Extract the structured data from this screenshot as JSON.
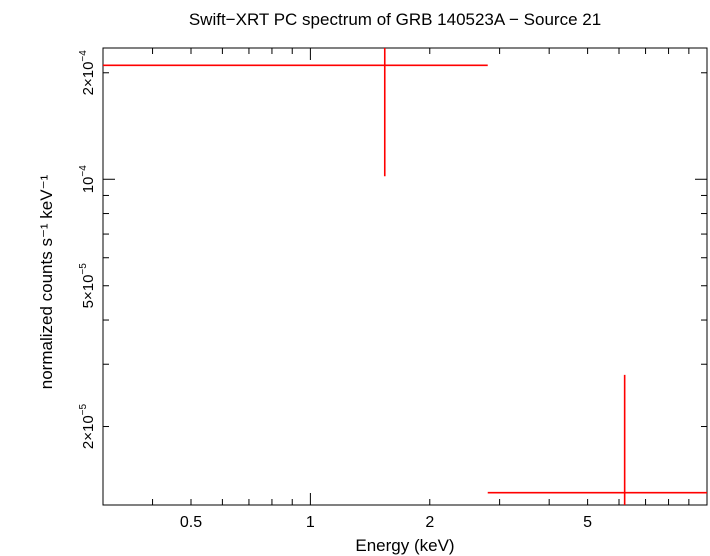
{
  "chart_data": {
    "type": "scatter",
    "title": "Swift−XRT PC spectrum of GRB 140523A − Source 21",
    "xlabel": "Energy (keV)",
    "ylabel": "normalized counts s⁻¹ keV⁻¹",
    "xscale": "log",
    "yscale": "log",
    "xlim": [
      0.3,
      10.0
    ],
    "ylim": [
      1.2e-05,
      0.000235
    ],
    "grid": false,
    "x_tick_labels": [
      {
        "value": 0.5,
        "label": "0.5"
      },
      {
        "value": 1,
        "label": "1"
      },
      {
        "value": 2,
        "label": "2"
      },
      {
        "value": 5,
        "label": "5"
      }
    ],
    "y_tick_labels": [
      {
        "value": 2e-05,
        "mant": "2×10",
        "exp": "−5"
      },
      {
        "value": 5e-05,
        "mant": "5×10",
        "exp": "−5"
      },
      {
        "value": 0.0001,
        "mant": "10",
        "exp": "−4"
      },
      {
        "value": 0.0002,
        "mant": "2×10",
        "exp": "−4"
      }
    ],
    "series": [
      {
        "color": "#ff0000",
        "points": [
          {
            "x": 1.54,
            "xlow": 0.3,
            "xhigh": 2.8,
            "y": 0.00021,
            "ylow": 0.000102,
            "yhigh": 0.000235
          },
          {
            "x": 6.2,
            "xlow": 2.8,
            "xhigh": 10.0,
            "y": 1.3e-05,
            "ylow": 1.2e-05,
            "yhigh": 2.8e-05
          }
        ]
      }
    ]
  }
}
